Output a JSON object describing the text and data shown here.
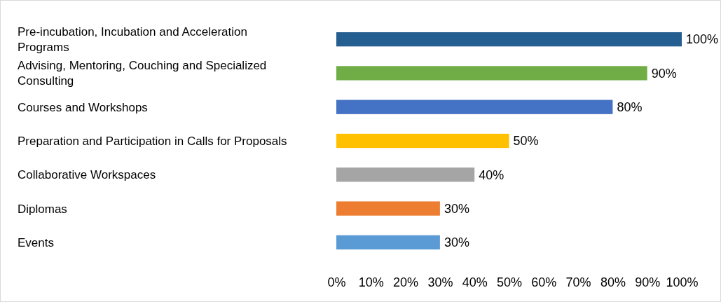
{
  "chart_data": {
    "type": "bar",
    "orientation": "horizontal",
    "categories": [
      "Pre-incubation, Incubation and Acceleration Programs",
      "Advising, Mentoring, Couching and Specialized Consulting",
      "Courses and Workshops",
      "Preparation and Participation in Calls for Proposals",
      "Collaborative Workspaces",
      "Diplomas",
      "Events"
    ],
    "values": [
      100,
      90,
      80,
      50,
      40,
      30,
      30
    ],
    "colors": [
      "#255e91",
      "#70ad47",
      "#4472c4",
      "#ffc000",
      "#a5a5a5",
      "#ed7d31",
      "#5b9bd5"
    ],
    "value_labels": [
      "100%",
      "90%",
      "80%",
      "50%",
      "40%",
      "30%",
      "30%"
    ],
    "xlim": [
      0,
      100
    ],
    "xticks": [
      {
        "value": 0,
        "label": "0%"
      },
      {
        "value": 10,
        "label": "10%"
      },
      {
        "value": 20,
        "label": "20%"
      },
      {
        "value": 30,
        "label": "30%"
      },
      {
        "value": 40,
        "label": "40%"
      },
      {
        "value": 50,
        "label": "50%"
      },
      {
        "value": 60,
        "label": "60%"
      },
      {
        "value": 70,
        "label": "70%"
      },
      {
        "value": 80,
        "label": "80%"
      },
      {
        "value": 90,
        "label": "90%"
      },
      {
        "value": 100,
        "label": "100%"
      }
    ],
    "grid": false
  }
}
